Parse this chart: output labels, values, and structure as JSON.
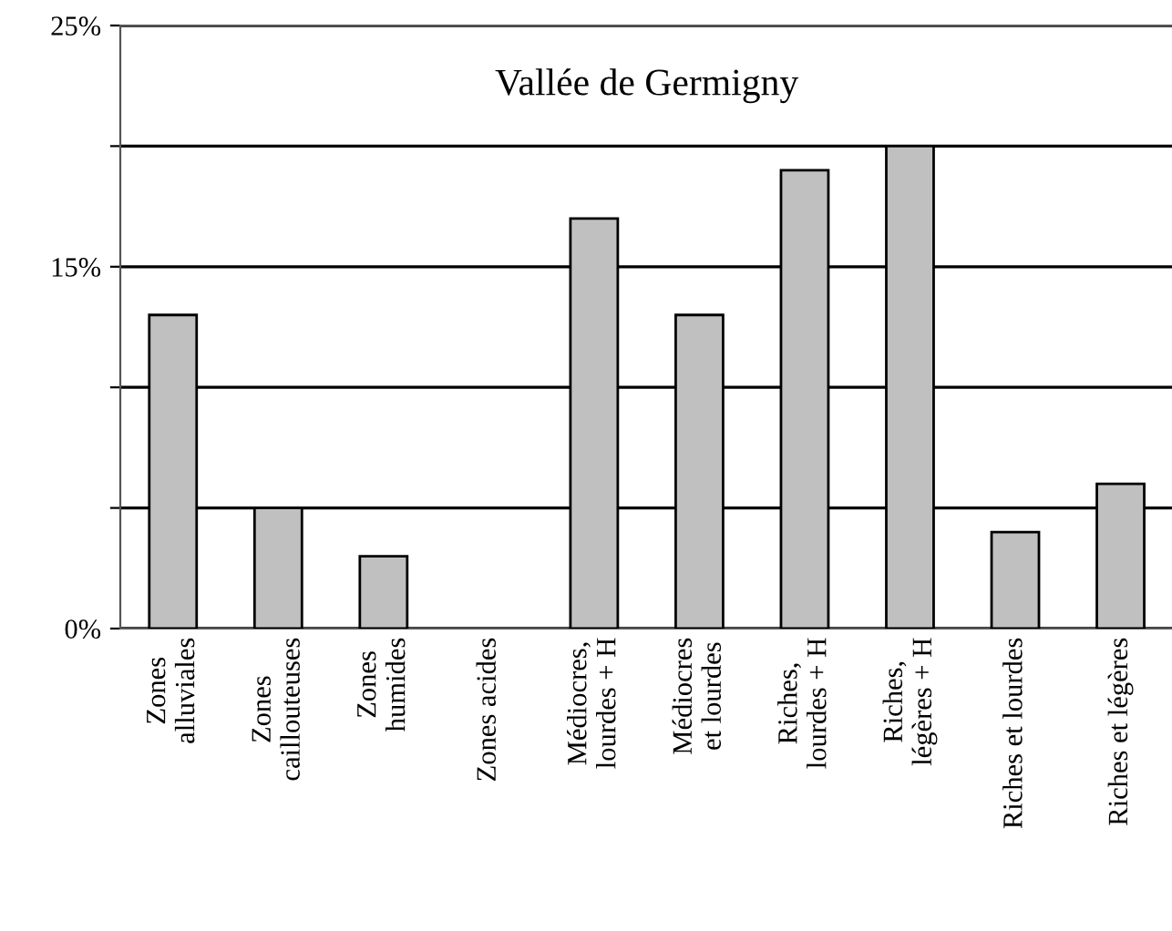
{
  "chart_data": {
    "type": "bar",
    "title": "Vallée de Germigny",
    "categories": [
      "Zones\nalluviales",
      "Zones\ncaillouteuses",
      "Zones\nhumides",
      "Zones acides",
      "Médiocres,\nlourdes + H",
      "Médiocres\net lourdes",
      "Riches,\nlourdes + H",
      "Riches,\nlégères + H",
      "Riches et lourdes",
      "Riches et légères"
    ],
    "values": [
      13,
      5,
      3,
      null,
      17,
      13,
      19,
      20,
      4,
      6
    ],
    "color": "#c0c0c0",
    "ylim": [
      0,
      25
    ],
    "yticks": [
      {
        "value": 0,
        "label": "0%"
      },
      {
        "value": 5,
        "label": null
      },
      {
        "value": 10,
        "label": null
      },
      {
        "value": 15,
        "label": "15%"
      },
      {
        "value": 20,
        "label": null
      },
      {
        "value": 25,
        "label": "25%"
      }
    ],
    "grid": "y"
  }
}
